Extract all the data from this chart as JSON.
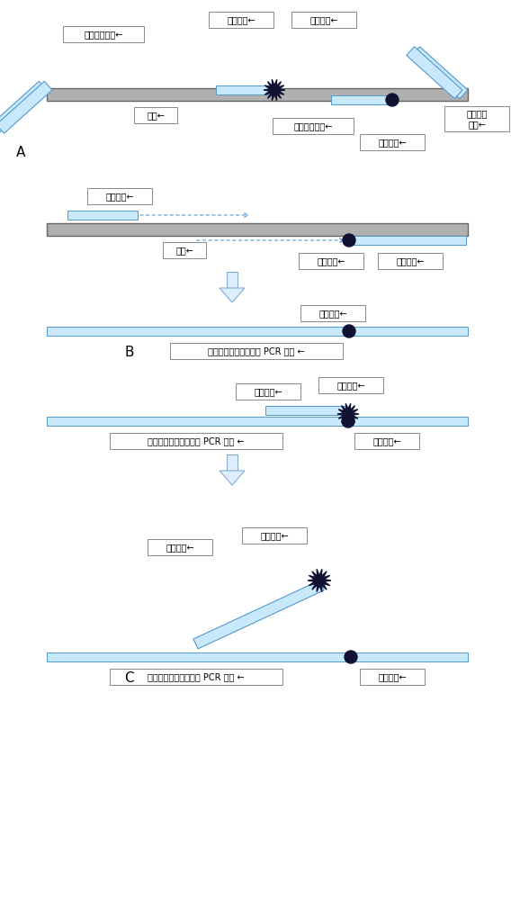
{
  "bg_color": "#ffffff",
  "template_color": "#b0b0b0",
  "primer_color": "#c8e8fc",
  "primer_edge": "#5599cc",
  "label_bg": "#ffffff",
  "label_edge": "#888888",
  "quencher_color": "#111133",
  "burst_color": "#111133",
  "arrow_color": "#88aacc",
  "fontsize": 7.0,
  "labels": {
    "forward_enrichment": "正向富集引物←",
    "fluor_probe": "荧光探针←",
    "fluor_group": "荧光基团←",
    "template": "模板←",
    "reverse_enrichment": "反向富集引物←",
    "reverse_universal": "反向通用\n引物←",
    "quencher": "淣灭基团←",
    "forward_primer": "正向引物←",
    "reverse_primer": "反向引物←",
    "reverse_pcr": "反向引物延申形成单链 PCR 产物 ←",
    "A": "A",
    "B": "B",
    "C": "C"
  }
}
